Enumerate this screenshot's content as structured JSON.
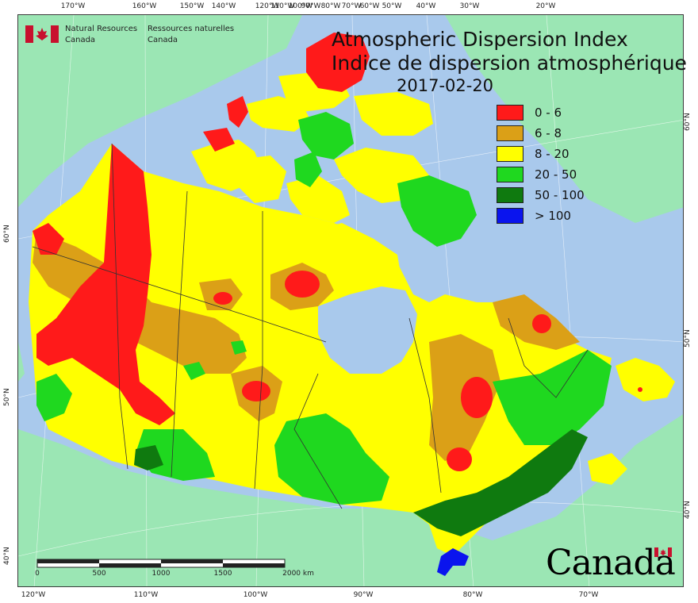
{
  "map": {
    "title_en": "Atmospheric Dispersion Index",
    "title_fr": "Indice de dispersion atmosphérique",
    "date": "2017-02-20"
  },
  "agency": {
    "name_en_line1": "Natural Resources",
    "name_en_line2": "Canada",
    "name_fr_line1": "Ressources naturelles",
    "name_fr_line2": "Canada",
    "wordmark": "Canada"
  },
  "legend": [
    {
      "label": "0 - 6",
      "color": "#ff1a1a"
    },
    {
      "label": "6 - 8",
      "color": "#dba017"
    },
    {
      "label": "8 - 20",
      "color": "#ffff00"
    },
    {
      "label": "20 - 50",
      "color": "#1fd81f"
    },
    {
      "label": "50 - 100",
      "color": "#0f7a0f"
    },
    {
      "label": "> 100",
      "color": "#0a14ee"
    }
  ],
  "graticule": {
    "top": [
      "170°W",
      "160°W",
      "150°W",
      "140°W",
      "120°W",
      "110°W",
      "100°W",
      "90°W",
      "80°W",
      "70°W",
      "60°W",
      "50°W",
      "40°W",
      "30°W",
      "20°W"
    ],
    "bottom": [
      "120°W",
      "110°W",
      "100°W",
      "90°W",
      "80°W",
      "70°W"
    ],
    "left": [
      "60°N",
      "50°N",
      "40°N"
    ],
    "right": [
      "60°N",
      "50°N",
      "40°N"
    ]
  },
  "scale": {
    "labels": [
      "0",
      "500",
      "1000",
      "1500",
      "2000 km"
    ]
  },
  "colors": {
    "water": "#a9c9ec",
    "neighbor_land": "#9be6b4"
  }
}
